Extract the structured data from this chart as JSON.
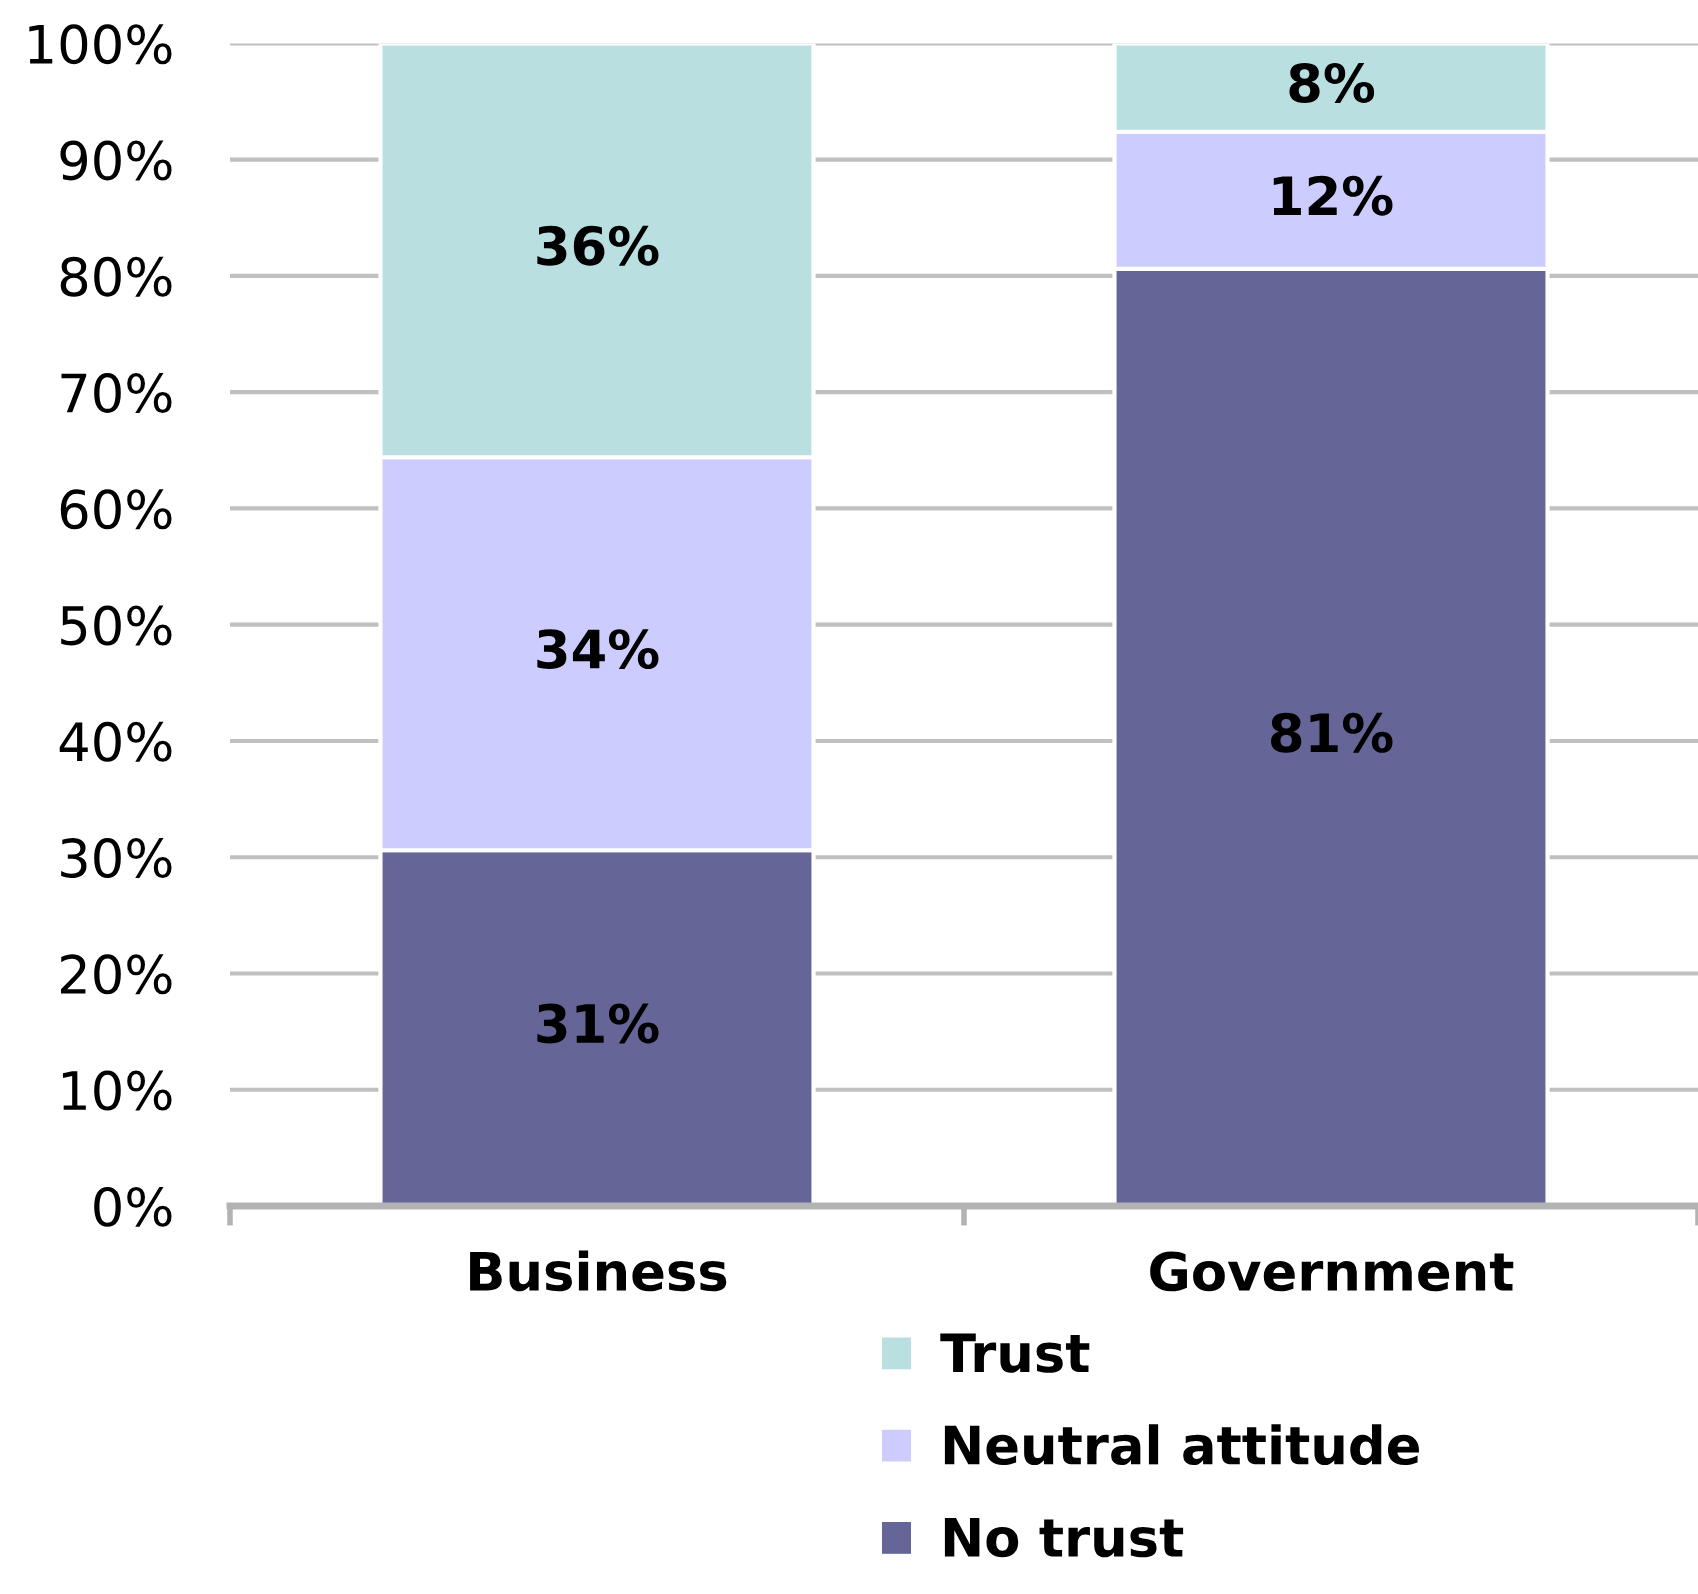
{
  "chart_data": {
    "type": "bar",
    "stacked": true,
    "categories": [
      "Business",
      "Government"
    ],
    "series": [
      {
        "name": "No trust",
        "color": "#656597",
        "values": [
          30.6,
          80.6
        ],
        "value_labels": [
          "31%",
          "81%"
        ]
      },
      {
        "name": "Neutral attitude",
        "color": "#ccccff",
        "values": [
          33.8,
          11.8
        ],
        "value_labels": [
          "34%",
          "12%"
        ]
      },
      {
        "name": "Trust",
        "color": "#badfe1",
        "values": [
          35.6,
          7.6
        ],
        "value_labels": [
          "36%",
          "8%"
        ]
      }
    ],
    "ylim": [
      0,
      100
    ],
    "yticks": [
      {
        "value": 0,
        "label": "0%"
      },
      {
        "value": 10,
        "label": "10%"
      },
      {
        "value": 20,
        "label": "20%"
      },
      {
        "value": 30,
        "label": "30%"
      },
      {
        "value": 40,
        "label": "40%"
      },
      {
        "value": 50,
        "label": "50%"
      },
      {
        "value": 60,
        "label": "60%"
      },
      {
        "value": 70,
        "label": "70%"
      },
      {
        "value": 80,
        "label": "80%"
      },
      {
        "value": 90,
        "label": "90%"
      },
      {
        "value": 100,
        "label": "100%"
      }
    ],
    "grid": "y",
    "legend": "bottom"
  }
}
